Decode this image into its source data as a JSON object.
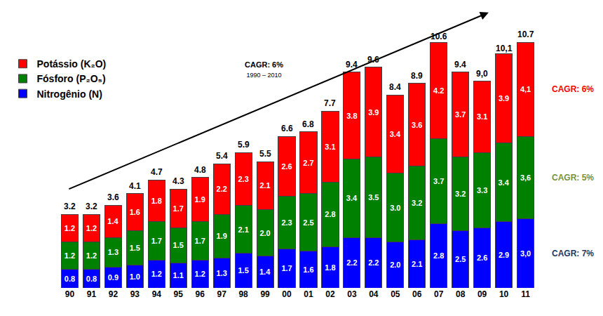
{
  "chart_data": {
    "type": "bar",
    "stacked": true,
    "data_labels": true,
    "tick_labels": "x",
    "legend": "top-left",
    "categories": [
      "90",
      "91",
      "92",
      "93",
      "94",
      "95",
      "96",
      "97",
      "98",
      "99",
      "00",
      "01",
      "02",
      "03",
      "04",
      "05",
      "06",
      "07",
      "08",
      "09",
      "10",
      "11"
    ],
    "series": [
      {
        "name": "Nitrogênio (N)",
        "color": "#0000ff",
        "cagr": "CAGR: 7%",
        "cagr_color": "#1f3864",
        "values": [
          0.8,
          0.8,
          0.9,
          1.0,
          1.2,
          1.1,
          1.2,
          1.3,
          1.5,
          1.4,
          1.7,
          1.6,
          1.8,
          2.2,
          2.2,
          2.0,
          2.1,
          2.8,
          2.5,
          2.6,
          2.9,
          3.0
        ],
        "value_labels": [
          "0.8",
          "0.8",
          "0.9",
          "1.0",
          "1.2",
          "1.1",
          "1.2",
          "1.3",
          "1.5",
          "1.4",
          "1.7",
          "1.6",
          "1.8",
          "2.2",
          "2.2",
          "2.0",
          "2.1",
          "2.8",
          "2.5",
          "2.6",
          "2.9",
          "3,0"
        ]
      },
      {
        "name": "Fósforo (P₂O₅)",
        "color": "#008000",
        "cagr": "CAGR: 5%",
        "cagr_color": "#77933c",
        "values": [
          1.2,
          1.2,
          1.3,
          1.5,
          1.7,
          1.5,
          1.7,
          1.9,
          2.1,
          2.0,
          2.3,
          2.5,
          2.8,
          3.4,
          3.5,
          3.0,
          3.2,
          3.7,
          3.2,
          3.3,
          3.4,
          3.6
        ],
        "value_labels": [
          "1.2",
          "1.2",
          "1.3",
          "1.5",
          "1.7",
          "1.5",
          "1.7",
          "1.9",
          "2.1",
          "2.0",
          "2.3",
          "2.5",
          "2.8",
          "3.4",
          "3.5",
          "3.0",
          "3.2",
          "3.7",
          "3.2",
          "3.3",
          "3.4",
          "3,6"
        ]
      },
      {
        "name": "Potássio (K₂O)",
        "color": "#ff0000",
        "cagr": "CAGR: 6%",
        "cagr_color": "#ff0000",
        "values": [
          1.2,
          1.2,
          1.4,
          1.6,
          1.8,
          1.7,
          1.9,
          2.2,
          2.3,
          2.1,
          2.6,
          2.7,
          3.1,
          3.8,
          3.9,
          3.4,
          3.6,
          4.2,
          3.7,
          3.1,
          3.9,
          4.1
        ],
        "value_labels": [
          "1.2",
          "1.2",
          "1.4",
          "1.6",
          "1.8",
          "1.7",
          "1.9",
          "2.2",
          "2.3",
          "2.1",
          "2.6",
          "2.7",
          "3.1",
          "3.8",
          "3.9",
          "3.4",
          "3.6",
          "4.2",
          "3.7",
          "3.1",
          "3.9",
          "4,1"
        ]
      }
    ],
    "totals": {
      "values": [
        3.2,
        3.2,
        3.6,
        4.1,
        4.7,
        4.3,
        4.8,
        5.4,
        5.9,
        5.5,
        6.6,
        6.8,
        7.7,
        9.4,
        9.6,
        8.4,
        8.9,
        10.6,
        9.4,
        9.0,
        10.1,
        10.7
      ],
      "value_labels": [
        "3.2",
        "3.2",
        "3.6",
        "4.1",
        "4.7",
        "4.3",
        "4.8",
        "5.4",
        "5.9",
        "5.5",
        "6.6",
        "6.8",
        "7.7",
        "9.4",
        "9.6",
        "8.4",
        "8.9",
        "10.6",
        "9.4",
        "9,0",
        "10,1",
        "10.7"
      ]
    },
    "trend": {
      "label": "CAGR: 6%",
      "period": "1990 – 2010"
    }
  }
}
